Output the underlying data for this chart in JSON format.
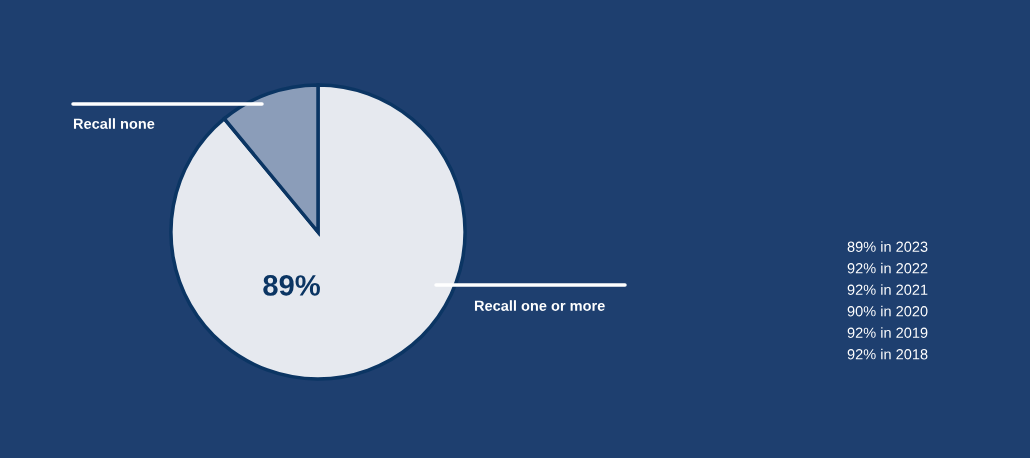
{
  "chart_data": {
    "type": "pie",
    "categories": [
      "Recall one or more",
      "Recall none"
    ],
    "values": [
      89,
      11
    ],
    "colors": [
      "#e6e9ef",
      "#8b9db9"
    ],
    "value_labels": [
      "89%",
      null
    ],
    "annotations": [
      "89% in 2023",
      "92% in 2022",
      "92% in 2021",
      "90% in 2020",
      "92% in 2019",
      "92% in 2018"
    ]
  }
}
